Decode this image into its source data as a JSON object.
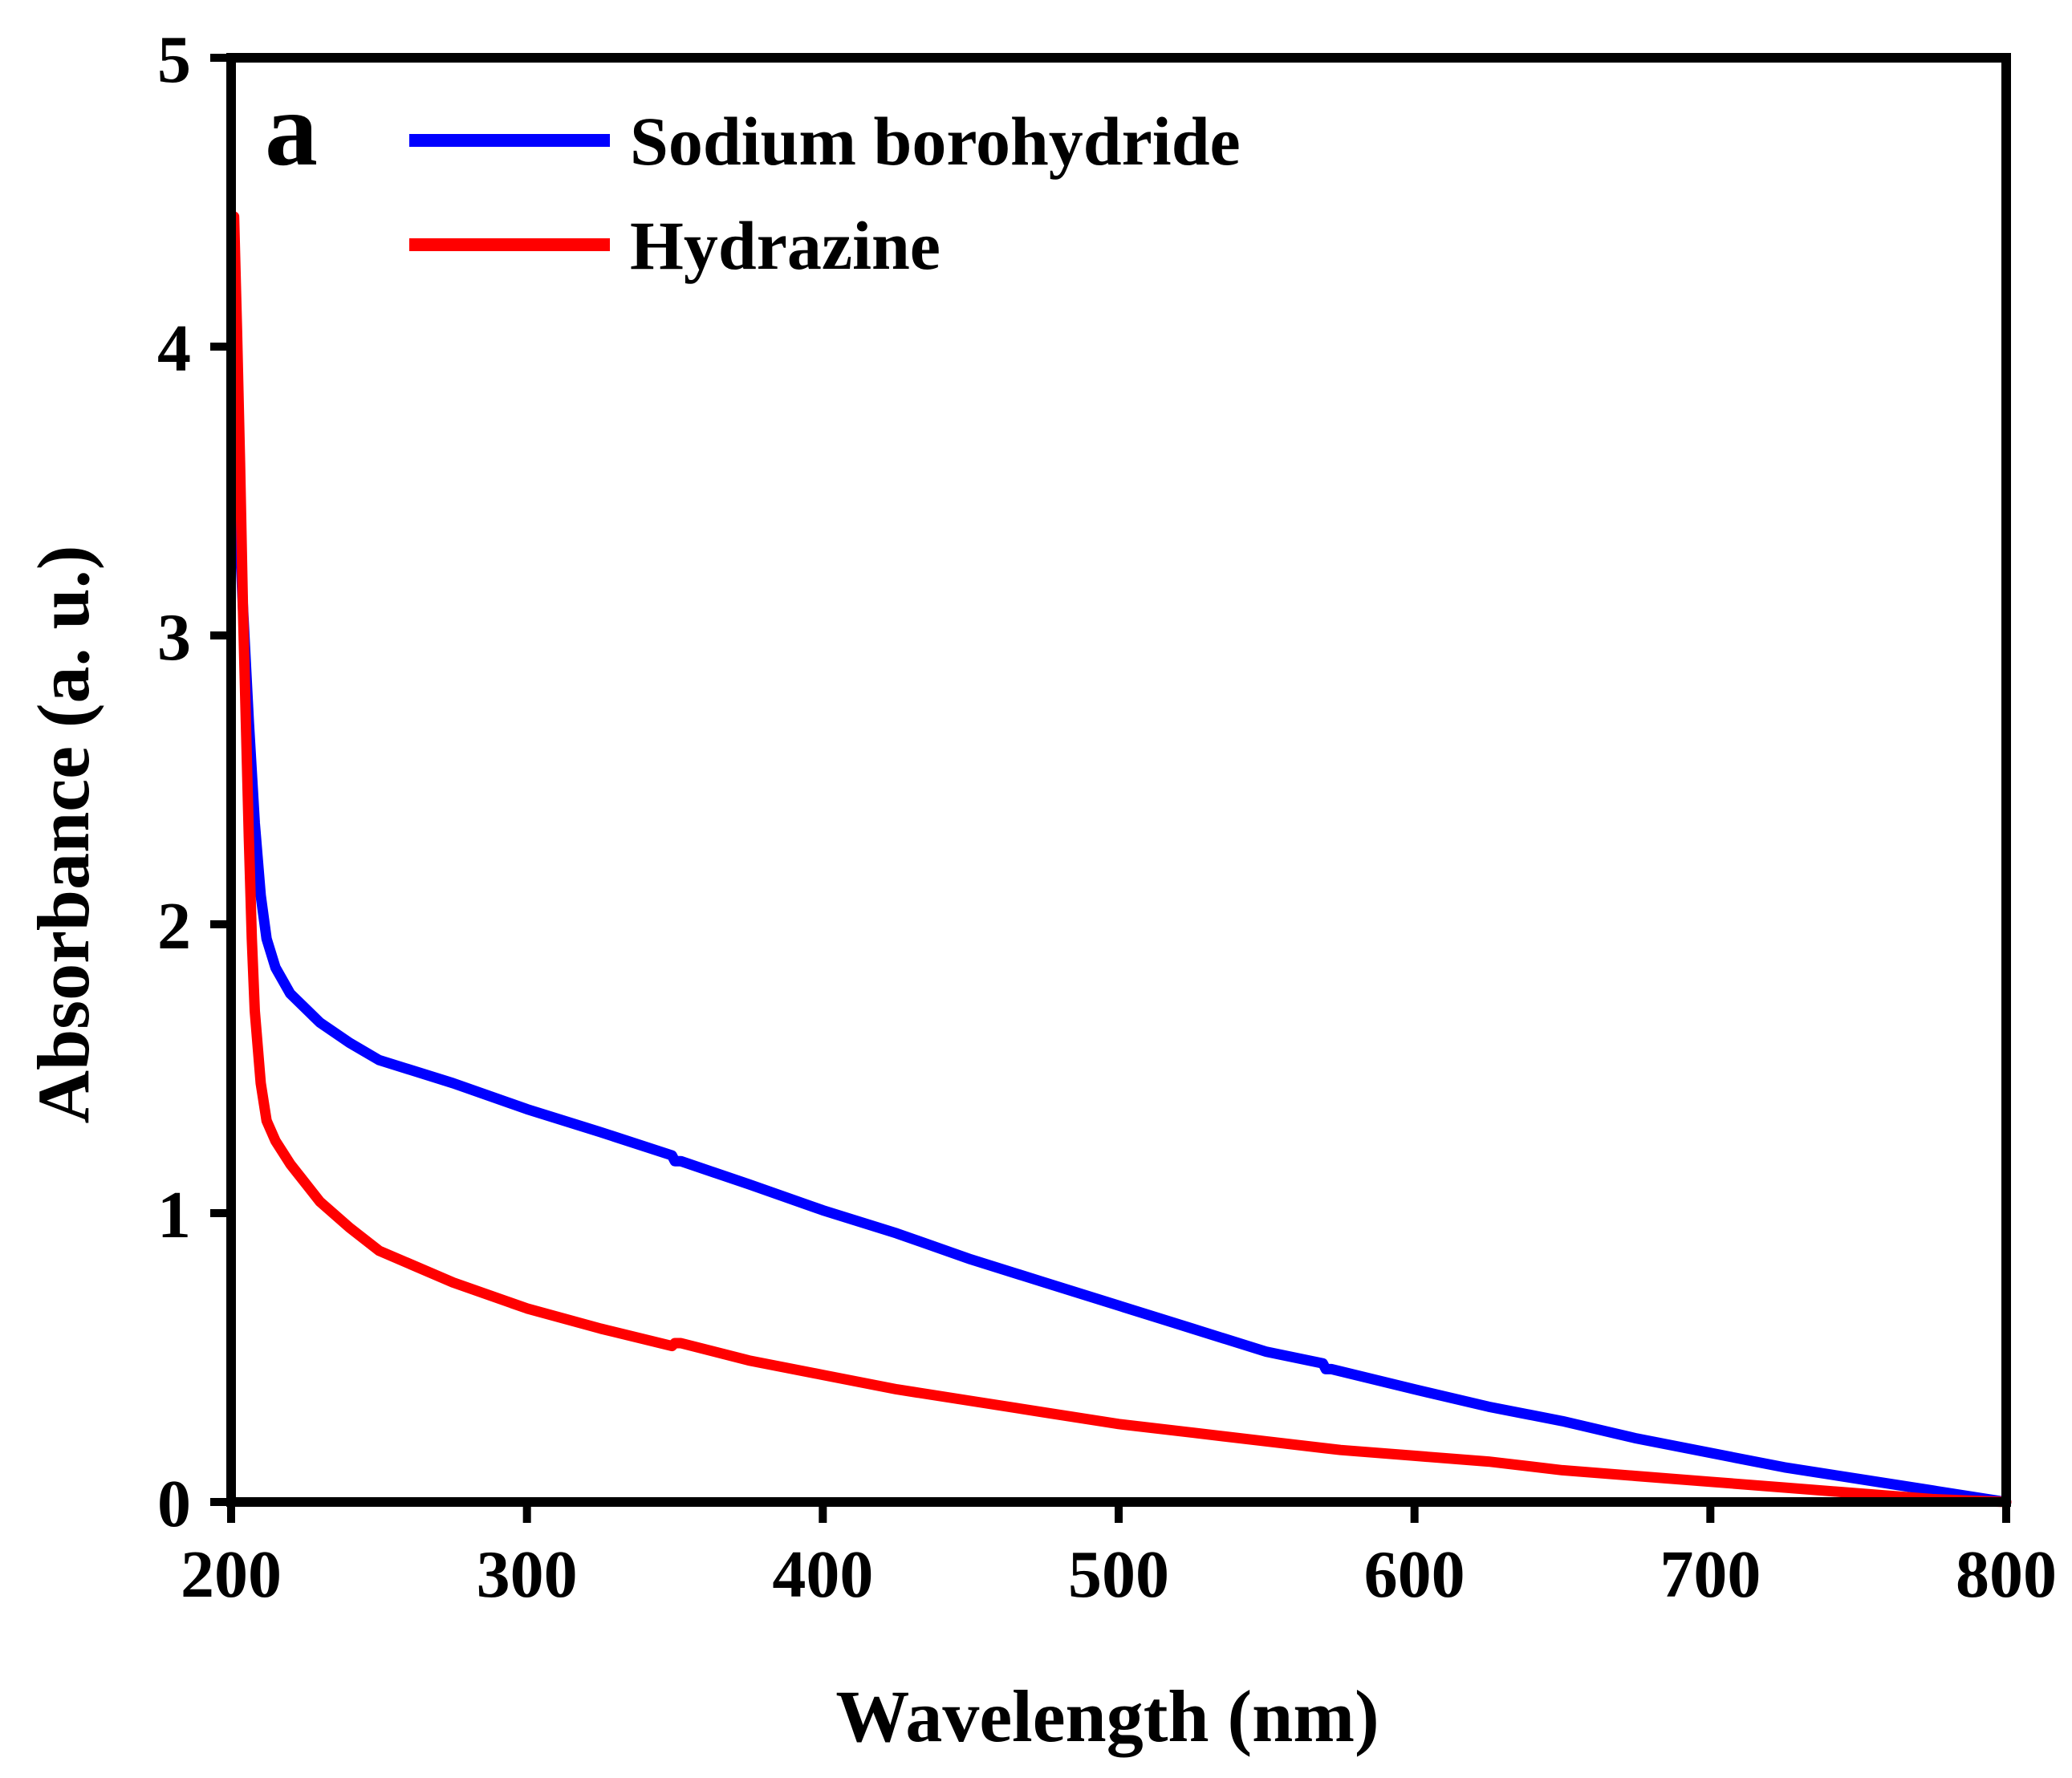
{
  "chart_data": {
    "type": "line",
    "panel_label": "a",
    "xlabel": "Wavelength (nm)",
    "ylabel": "Absorbance (a. u.)",
    "xlim": [
      200,
      800
    ],
    "ylim": [
      0,
      5
    ],
    "xticks": [
      200,
      300,
      400,
      500,
      600,
      700,
      800
    ],
    "yticks": [
      0,
      1,
      2,
      3,
      4,
      5
    ],
    "grid": false,
    "legend_position": "top-left",
    "series": [
      {
        "name": "Sodium borohydride",
        "color": "#0000ff",
        "x": [
          202,
          204,
          206,
          208,
          210,
          212,
          215,
          220,
          230,
          240,
          250,
          275,
          300,
          325,
          349,
          350,
          352,
          375,
          400,
          425,
          450,
          475,
          500,
          525,
          550,
          569,
          570,
          572,
          600,
          625,
          650,
          675,
          700,
          725,
          750,
          775,
          800
        ],
        "y": [
          3.55,
          3.1,
          2.7,
          2.35,
          2.1,
          1.95,
          1.85,
          1.76,
          1.66,
          1.59,
          1.53,
          1.45,
          1.36,
          1.28,
          1.2,
          1.18,
          1.18,
          1.1,
          1.01,
          0.93,
          0.84,
          0.76,
          0.68,
          0.6,
          0.52,
          0.48,
          0.46,
          0.46,
          0.39,
          0.33,
          0.28,
          0.22,
          0.17,
          0.12,
          0.08,
          0.04,
          0.0
        ]
      },
      {
        "name": "Hydrazine",
        "color": "#ff0000",
        "x": [
          201,
          202,
          203,
          204,
          205,
          206,
          207,
          208,
          210,
          212,
          215,
          220,
          230,
          240,
          250,
          275,
          300,
          325,
          349,
          350,
          352,
          375,
          400,
          425,
          450,
          475,
          500,
          525,
          550,
          575,
          600,
          625,
          650,
          675,
          700,
          725,
          750,
          775,
          800
        ],
        "y": [
          4.45,
          4.05,
          3.6,
          3.1,
          2.7,
          2.3,
          1.95,
          1.7,
          1.45,
          1.32,
          1.25,
          1.17,
          1.04,
          0.95,
          0.87,
          0.76,
          0.67,
          0.6,
          0.54,
          0.55,
          0.55,
          0.49,
          0.44,
          0.39,
          0.35,
          0.31,
          0.27,
          0.24,
          0.21,
          0.18,
          0.16,
          0.14,
          0.11,
          0.09,
          0.07,
          0.05,
          0.03,
          0.01,
          0.0
        ]
      }
    ]
  }
}
